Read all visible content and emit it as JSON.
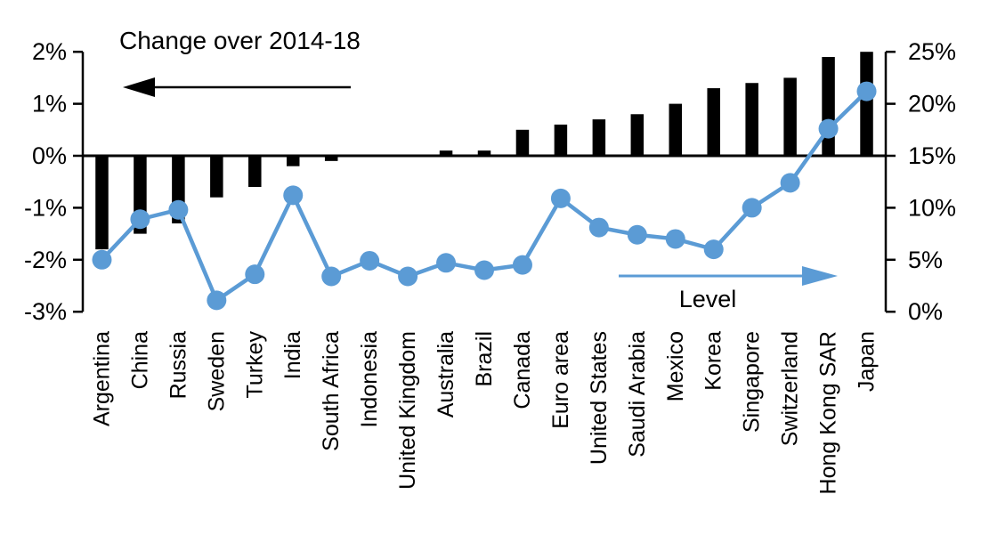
{
  "chart_data": {
    "type": "combo-bar-line",
    "title": "",
    "categories": [
      "Argentina",
      "China",
      "Russia",
      "Sweden",
      "Turkey",
      "India",
      "South Africa",
      "Indonesia",
      "United Kingdom",
      "Australia",
      "Brazil",
      "Canada",
      "Euro area",
      "United States",
      "Saudi Arabia",
      "Mexico",
      "Korea",
      "Singapore",
      "Switzerland",
      "Hong Kong SAR",
      "Japan"
    ],
    "series": [
      {
        "name": "Change over 2014-18",
        "type": "bar",
        "axis": "left",
        "color": "#000000",
        "values": [
          -1.8,
          -1.5,
          -1.3,
          -0.8,
          -0.6,
          -0.2,
          -0.1,
          0,
          0,
          0.1,
          0.1,
          0.5,
          0.6,
          0.7,
          0.8,
          1.0,
          1.3,
          1.4,
          1.5,
          1.9,
          2.0
        ]
      },
      {
        "name": "Level",
        "type": "line",
        "axis": "right",
        "color": "#5B9BD5",
        "values": [
          5.0,
          8.9,
          9.8,
          1.1,
          3.6,
          11.2,
          3.4,
          4.9,
          3.4,
          4.7,
          4.0,
          4.5,
          10.9,
          8.1,
          7.4,
          7.0,
          6.0,
          10.0,
          12.4,
          17.6,
          21.2
        ]
      }
    ],
    "left_axis": {
      "min": -3,
      "max": 2,
      "tick_values": [
        2,
        1,
        0,
        -1,
        -2,
        -3
      ],
      "tick_labels": [
        "2%",
        "1%",
        "0%",
        "-1%",
        "-2%",
        "-3%"
      ]
    },
    "right_axis": {
      "min": 0,
      "max": 25,
      "tick_values": [
        25,
        20,
        15,
        10,
        5,
        0
      ],
      "tick_labels": [
        "25%",
        "20%",
        "15%",
        "10%",
        "5%",
        "0%"
      ]
    },
    "annotations": {
      "bar_label": "Change over 2014-18",
      "line_label": "Level"
    },
    "grid": false,
    "legend_position": "in-plot text with directional arrows",
    "colors": {
      "bar": "#000000",
      "line": "#5B9BD5",
      "text": "#000000",
      "background": "#ffffff"
    }
  }
}
